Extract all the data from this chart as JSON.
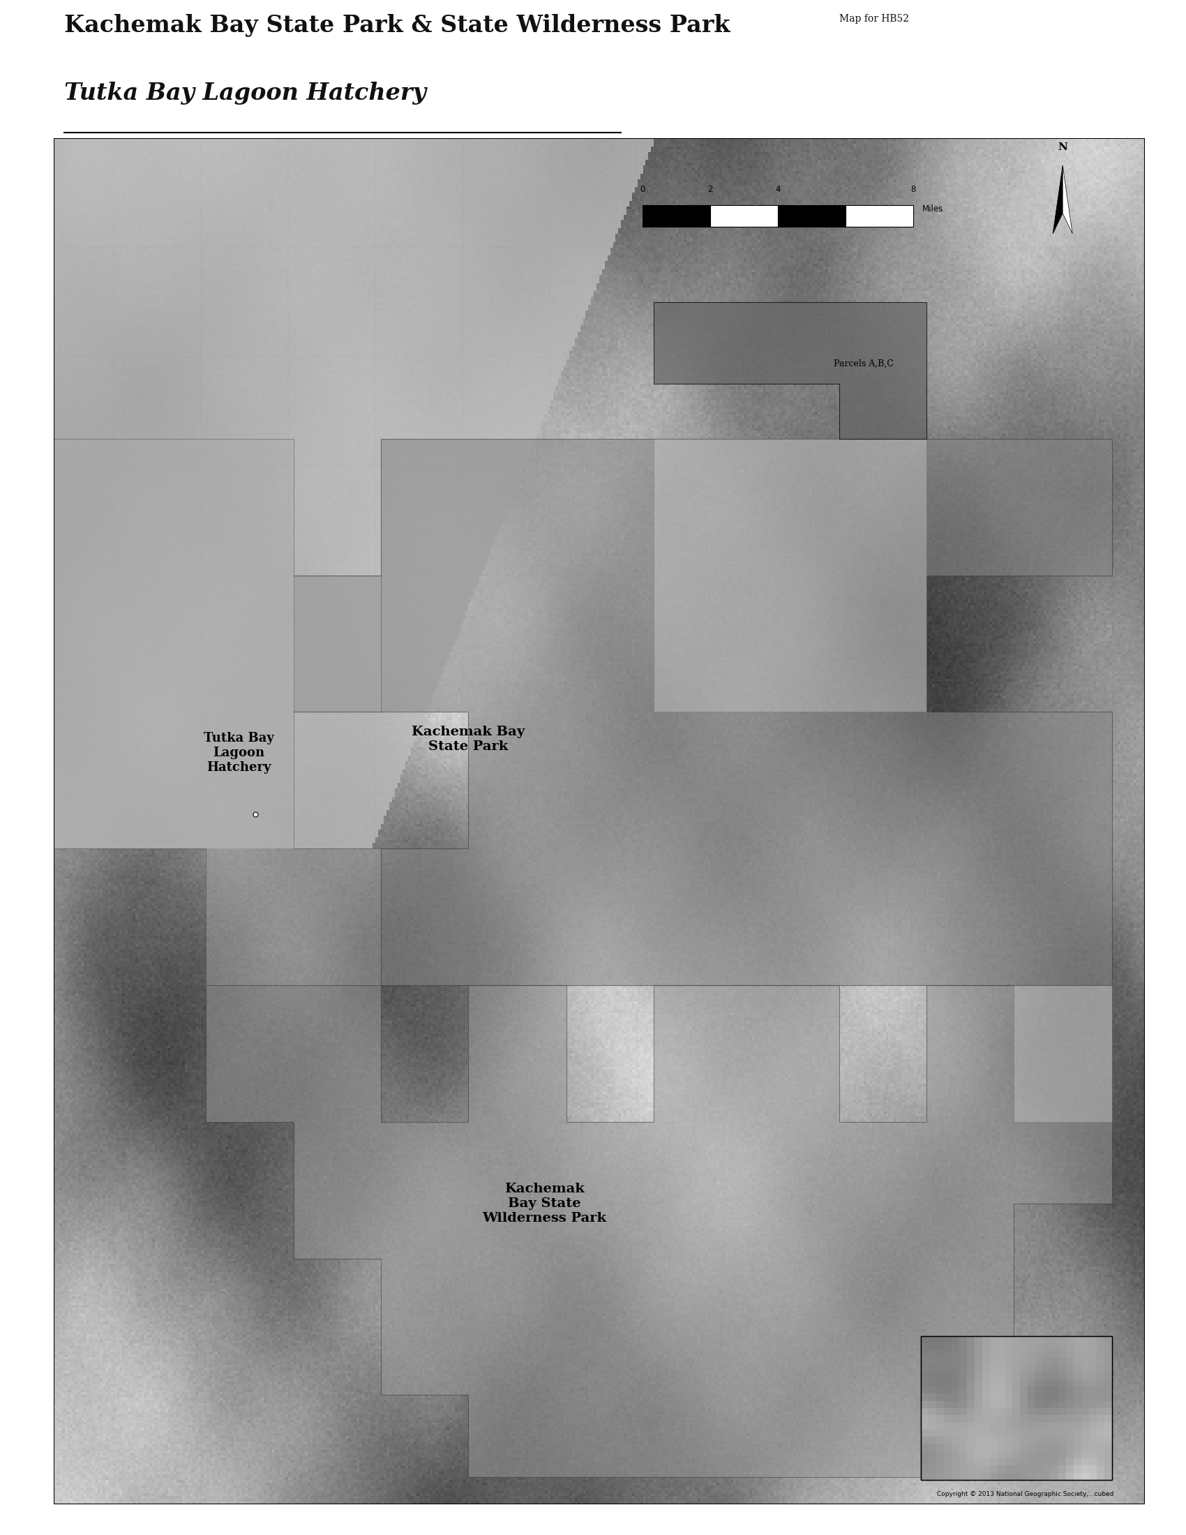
{
  "title_line1": "Kachemak Bay State Park & State Wilderness Park",
  "title_line2": "Tutka Bay Lagoon Hatchery",
  "map_label": "Map for HB52",
  "paper_color": "#ffffff",
  "park_fill": "#888888",
  "park_alpha": 0.55,
  "wilderness_fill": "#999999",
  "wilderness_alpha": 0.5,
  "light_overlay_fill": "#bbbbbb",
  "light_overlay_alpha": 0.4,
  "scale_ticks": [
    "0",
    "2",
    "4",
    "8"
  ],
  "copyright": "Copyright © 2013 National Geographic Society,...cubed"
}
